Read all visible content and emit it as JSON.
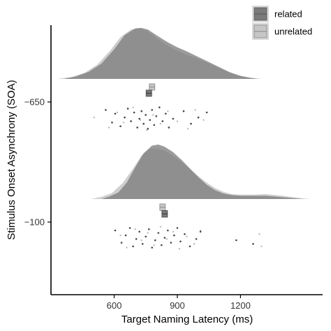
{
  "chart_data": {
    "type": "raincloud",
    "xlabel": "Target Naming Latency (ms)",
    "ylabel": "Stimulus Onset Asynchrony (SOA)",
    "x_ticks": [
      600,
      900,
      1200
    ],
    "xlim": [
      300,
      1590
    ],
    "categories": [
      "-650",
      "-100"
    ],
    "category_labels": [
      "−650",
      "−100"
    ],
    "grid": false,
    "legend_position": "top-right",
    "series": [
      {
        "name": "related",
        "color": "#7a7a7a",
        "distributions": [
          {
            "category": "-650",
            "density": [
              [
                360,
                0
              ],
              [
                420,
                0.05
              ],
              [
                480,
                0.14
              ],
              [
                540,
                0.3
              ],
              [
                600,
                0.58
              ],
              [
                650,
                0.86
              ],
              [
                700,
                0.99
              ],
              [
                730,
                1.0
              ],
              [
                760,
                0.97
              ],
              [
                800,
                0.86
              ],
              [
                850,
                0.73
              ],
              [
                900,
                0.62
              ],
              [
                950,
                0.53
              ],
              [
                1000,
                0.43
              ],
              [
                1050,
                0.33
              ],
              [
                1100,
                0.23
              ],
              [
                1150,
                0.13
              ],
              [
                1200,
                0.06
              ],
              [
                1250,
                0.02
              ],
              [
                1290,
                0
              ]
            ],
            "median": 765,
            "points": [
              [
                560,
                0.15
              ],
              [
                590,
                0.65
              ],
              [
                605,
                0.3
              ],
              [
                630,
                0.8
              ],
              [
                650,
                0.45
              ],
              [
                665,
                0.1
              ],
              [
                680,
                0.6
              ],
              [
                695,
                0.25
              ],
              [
                710,
                0.85
              ],
              [
                720,
                0.5
              ],
              [
                730,
                0.2
              ],
              [
                740,
                0.7
              ],
              [
                750,
                0.35
              ],
              [
                760,
                0.9
              ],
              [
                770,
                0.55
              ],
              [
                780,
                0.15
              ],
              [
                790,
                0.75
              ],
              [
                800,
                0.4
              ],
              [
                815,
                0.05
              ],
              [
                830,
                0.6
              ],
              [
                845,
                0.3
              ],
              [
                860,
                0.85
              ],
              [
                880,
                0.5
              ],
              [
                930,
                0.2
              ],
              [
                965,
                0.7
              ],
              [
                1000,
                0.45
              ],
              [
                1040,
                0.25
              ]
            ]
          },
          {
            "category": "-100",
            "density": [
              [
                540,
                0
              ],
              [
                580,
                0.05
              ],
              [
                620,
                0.12
              ],
              [
                660,
                0.3
              ],
              [
                700,
                0.58
              ],
              [
                740,
                0.84
              ],
              [
                780,
                0.98
              ],
              [
                810,
                1.0
              ],
              [
                840,
                0.96
              ],
              [
                880,
                0.86
              ],
              [
                920,
                0.72
              ],
              [
                960,
                0.56
              ],
              [
                1000,
                0.4
              ],
              [
                1040,
                0.26
              ],
              [
                1080,
                0.16
              ],
              [
                1120,
                0.1
              ],
              [
                1160,
                0.07
              ],
              [
                1200,
                0.06
              ],
              [
                1260,
                0.06
              ],
              [
                1320,
                0.06
              ],
              [
                1380,
                0.04
              ],
              [
                1440,
                0.02
              ],
              [
                1500,
                0
              ]
            ],
            "median": 840,
            "points": [
              [
                605,
                0.2
              ],
              [
                635,
                0.7
              ],
              [
                655,
                0.4
              ],
              [
                675,
                0.1
              ],
              [
                690,
                0.85
              ],
              [
                705,
                0.55
              ],
              [
                720,
                0.25
              ],
              [
                735,
                0.75
              ],
              [
                750,
                0.45
              ],
              [
                765,
                0.15
              ],
              [
                780,
                0.9
              ],
              [
                795,
                0.6
              ],
              [
                810,
                0.3
              ],
              [
                825,
                0.8
              ],
              [
                840,
                0.5
              ],
              [
                855,
                0.2
              ],
              [
                870,
                0.7
              ],
              [
                885,
                0.4
              ],
              [
                900,
                0.1
              ],
              [
                915,
                0.65
              ],
              [
                935,
                0.35
              ],
              [
                960,
                0.85
              ],
              [
                990,
                0.55
              ],
              [
                1010,
                0.25
              ],
              [
                1180,
                0.6
              ],
              [
                1260,
                0.75
              ]
            ]
          }
        ]
      },
      {
        "name": "unrelated",
        "color": "#c6c6c6",
        "distributions": [
          {
            "category": "-650",
            "density": [
              [
                330,
                0
              ],
              [
                400,
                0.04
              ],
              [
                460,
                0.12
              ],
              [
                520,
                0.28
              ],
              [
                580,
                0.55
              ],
              [
                630,
                0.82
              ],
              [
                680,
                0.97
              ],
              [
                720,
                1.0
              ],
              [
                760,
                0.93
              ],
              [
                800,
                0.8
              ],
              [
                850,
                0.66
              ],
              [
                900,
                0.55
              ],
              [
                950,
                0.47
              ],
              [
                1000,
                0.39
              ],
              [
                1050,
                0.3
              ],
              [
                1100,
                0.21
              ],
              [
                1150,
                0.12
              ],
              [
                1200,
                0.05
              ],
              [
                1260,
                0.01
              ],
              [
                1300,
                0
              ]
            ],
            "median": 780,
            "points": [
              [
                505,
                0.45
              ],
              [
                575,
                0.85
              ],
              [
                615,
                0.25
              ],
              [
                645,
                0.65
              ],
              [
                690,
                0.05
              ],
              [
                725,
                0.55
              ],
              [
                755,
                0.95
              ],
              [
                785,
                0.35
              ],
              [
                820,
                0.7
              ],
              [
                855,
                0.2
              ],
              [
                900,
                0.6
              ],
              [
                950,
                0.9
              ],
              [
                985,
                0.15
              ],
              [
                1025,
                0.55
              ]
            ]
          },
          {
            "category": "-100",
            "density": [
              [
                490,
                0
              ],
              [
                540,
                0.04
              ],
              [
                590,
                0.11
              ],
              [
                640,
                0.29
              ],
              [
                690,
                0.56
              ],
              [
                730,
                0.8
              ],
              [
                770,
                0.92
              ],
              [
                800,
                0.93
              ],
              [
                840,
                0.89
              ],
              [
                880,
                0.8
              ],
              [
                920,
                0.68
              ],
              [
                960,
                0.55
              ],
              [
                1000,
                0.42
              ],
              [
                1040,
                0.3
              ],
              [
                1080,
                0.2
              ],
              [
                1120,
                0.13
              ],
              [
                1160,
                0.09
              ],
              [
                1200,
                0.08
              ],
              [
                1260,
                0.08
              ],
              [
                1320,
                0.09
              ],
              [
                1400,
                0.06
              ],
              [
                1480,
                0.02
              ],
              [
                1530,
                0
              ]
            ],
            "median": 830,
            "points": [
              [
                630,
                0.4
              ],
              [
                660,
                0.9
              ],
              [
                700,
                0.15
              ],
              [
                730,
                0.6
              ],
              [
                760,
                0.3
              ],
              [
                790,
                0.8
              ],
              [
                820,
                0.05
              ],
              [
                850,
                0.55
              ],
              [
                880,
                0.25
              ],
              [
                910,
                0.95
              ],
              [
                945,
                0.45
              ],
              [
                980,
                0.75
              ],
              [
                1010,
                0.2
              ],
              [
                1290,
                0.35
              ],
              [
                1300,
                0.85
              ]
            ]
          }
        ]
      }
    ]
  }
}
